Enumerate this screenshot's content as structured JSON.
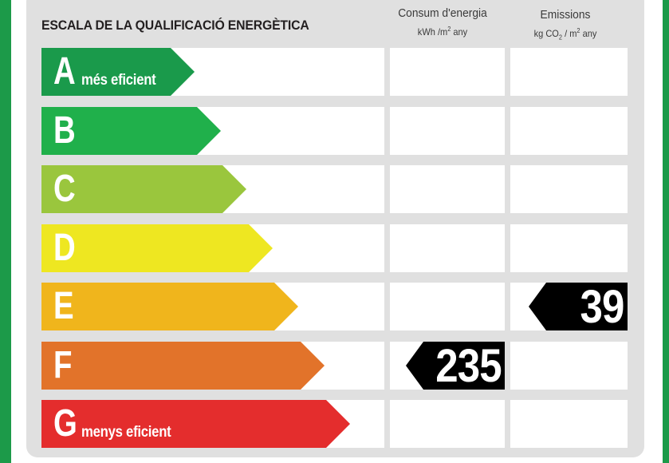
{
  "title": "ESCALA DE LA QUALIFICACIÓ ENERGÈTICA",
  "columns": {
    "consum": {
      "label": "Consum d'energia",
      "unit_pre": "kWh /m",
      "unit_exp": "2",
      "unit_post": "  any"
    },
    "emissions": {
      "label": "Emissions",
      "unit_pre": "kg CO",
      "unit_sub": "2",
      "unit_mid": "  / m",
      "unit_exp": "2",
      "unit_post": "  any"
    }
  },
  "classes": [
    {
      "letter": "A",
      "label": "més eficient",
      "color": "#1a9a4b"
    },
    {
      "letter": "B",
      "label": "",
      "color": "#20b04b"
    },
    {
      "letter": "C",
      "label": "",
      "color": "#9ac63d"
    },
    {
      "letter": "D",
      "label": "",
      "color": "#eee721"
    },
    {
      "letter": "E",
      "label": "",
      "color": "#f0b51c"
    },
    {
      "letter": "F",
      "label": "",
      "color": "#e2732a"
    },
    {
      "letter": "G",
      "label": "menys eficient",
      "color": "#e42d2d"
    }
  ],
  "rating": {
    "consum": {
      "value": "235",
      "class": "F"
    },
    "emissions": {
      "value": "39",
      "class": "E"
    }
  }
}
